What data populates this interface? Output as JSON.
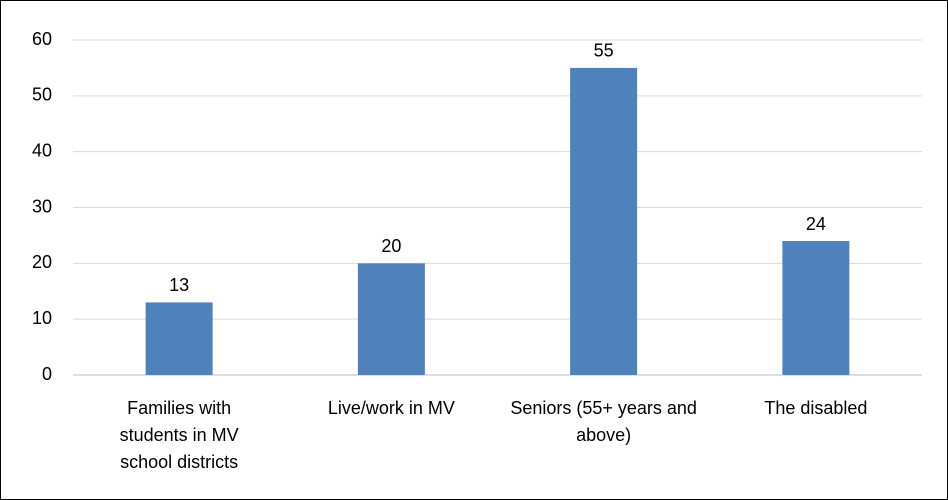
{
  "chart_data": {
    "type": "bar",
    "categories": [
      "Families with students in MV school districts",
      "Live/work in MV",
      "Seniors (55+ years and above)",
      "The disabled"
    ],
    "values": [
      13,
      20,
      55,
      24
    ],
    "color": "#4f81bd",
    "ylim": [
      0,
      60
    ],
    "yticks": [
      0,
      10,
      20,
      30,
      40,
      50,
      60
    ],
    "grid": true
  }
}
